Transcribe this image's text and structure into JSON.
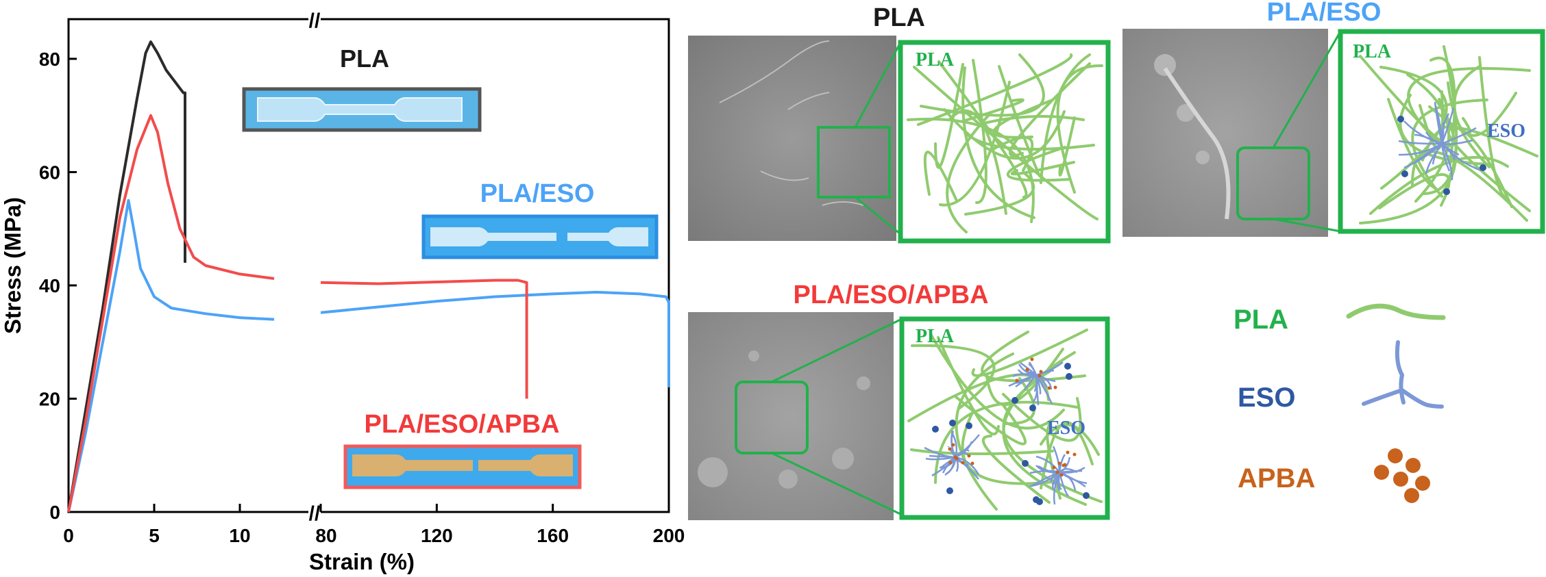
{
  "chart_data": {
    "type": "line",
    "xlabel": "Strain (%)",
    "ylabel": "Stress (MPa)",
    "y_ticks": [
      "0",
      "20",
      "40",
      "60",
      "80"
    ],
    "x_ticks_left": [
      "0",
      "5",
      "10"
    ],
    "x_ticks_right": [
      "80",
      "120",
      "160",
      "200"
    ],
    "x_break": "//",
    "ylim": [
      0,
      87
    ],
    "xlim_left": [
      0,
      14
    ],
    "xlim_right": [
      80,
      200
    ],
    "series": [
      {
        "name": "PLA",
        "color": "#2b2b2b",
        "left": [
          [
            0,
            0
          ],
          [
            1,
            18
          ],
          [
            2,
            36
          ],
          [
            3,
            56
          ],
          [
            4,
            73
          ],
          [
            4.5,
            81
          ],
          [
            4.8,
            83
          ],
          [
            5.2,
            81
          ],
          [
            5.7,
            78
          ],
          [
            6.2,
            76
          ],
          [
            6.7,
            74
          ],
          [
            6.8,
            74
          ],
          [
            6.8,
            44
          ]
        ],
        "right": []
      },
      {
        "name": "PLA/ESO",
        "color": "#4da3f7",
        "left": [
          [
            0,
            0
          ],
          [
            1,
            14
          ],
          [
            2,
            30
          ],
          [
            3,
            46
          ],
          [
            3.5,
            55
          ],
          [
            3.8,
            50
          ],
          [
            4.2,
            43
          ],
          [
            5,
            38
          ],
          [
            6,
            36
          ],
          [
            8,
            35
          ],
          [
            10,
            34.3
          ],
          [
            12,
            34
          ]
        ],
        "right": [
          [
            80,
            35.2
          ],
          [
            100,
            36.2
          ],
          [
            120,
            37.2
          ],
          [
            140,
            38
          ],
          [
            160,
            38.5
          ],
          [
            175,
            38.8
          ],
          [
            190,
            38.5
          ],
          [
            199,
            38
          ],
          [
            200,
            37
          ],
          [
            200,
            22
          ]
        ]
      },
      {
        "name": "PLA/ESO/APBA",
        "color": "#f24c4c",
        "left": [
          [
            0,
            0
          ],
          [
            1,
            16
          ],
          [
            2,
            34
          ],
          [
            3,
            52
          ],
          [
            4,
            64
          ],
          [
            4.8,
            70
          ],
          [
            5.2,
            67
          ],
          [
            5.8,
            58
          ],
          [
            6.5,
            50
          ],
          [
            7.3,
            45
          ],
          [
            8,
            43.5
          ],
          [
            10,
            42
          ],
          [
            12,
            41.2
          ]
        ],
        "right": [
          [
            80,
            40.5
          ],
          [
            100,
            40.3
          ],
          [
            120,
            40.6
          ],
          [
            140,
            40.9
          ],
          [
            148,
            40.9
          ],
          [
            151,
            40.5
          ],
          [
            151,
            20
          ]
        ]
      }
    ]
  },
  "specimens": {
    "pla": "PLA",
    "pla_eso": "PLA/ESO",
    "pla_eso_apba": "PLA/ESO/APBA"
  },
  "micrographs": {
    "pla_title": "PLA",
    "pla_eso_title": "PLA/ESO",
    "pla_eso_apba_title": "PLA/ESO/APBA",
    "zoom_pla_label": "PLA",
    "zoom_eso_label": "ESO"
  },
  "legend": {
    "pla": "PLA",
    "eso": "ESO",
    "apba": "APBA"
  },
  "colors": {
    "green": "#22b14c",
    "strand": "#8fcb6e",
    "eso_blue": "#2f58a3",
    "eso_strand": "#7c98d6",
    "apba_orange": "#c8621c",
    "sem_gray": "#8c8c8c"
  }
}
